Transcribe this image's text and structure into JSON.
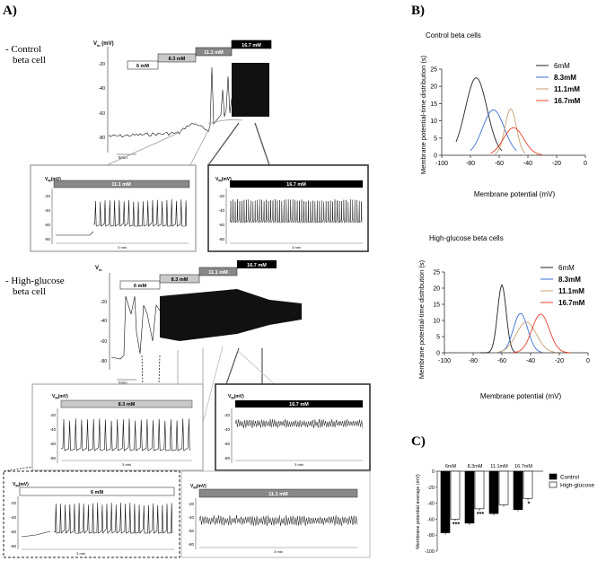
{
  "panelA": {
    "letter": "A)",
    "control": {
      "label_line1": "- Control",
      "label_line2": "beta cell",
      "vm_label": "V",
      "vm_sub": "m",
      "vm_unit": " (mV)",
      "glucose_bars": [
        "6 mM",
        "8.3 mM",
        "11.1 mM",
        "16.7 mM"
      ],
      "yticks": [
        "-20",
        "-40",
        "-60",
        "-80"
      ],
      "scale": "5min",
      "inset_left": {
        "bar": "11.1 mM",
        "vm": "V",
        "vm_sub": "M",
        "unit": "(mV)",
        "yticks": [
          "-20",
          "-40",
          "-60",
          "-80"
        ],
        "scale": "3 min"
      },
      "inset_right": {
        "bar": "16.7 mM",
        "vm": "V",
        "vm_sub": "M",
        "unit": "(mV)",
        "yticks": [
          "-20",
          "-40",
          "-60",
          "-80"
        ],
        "scale": "3 min"
      }
    },
    "highglucose": {
      "label_line1": "- High-glucose",
      "label_line2": "beta cell",
      "vm_label": "V",
      "vm_sub": "m",
      "glucose_bars": [
        "6 mM",
        "8.3 mM",
        "11.1 mM",
        "16.7 mM"
      ],
      "yticks": [
        "-20",
        "-40",
        "-60",
        "-80"
      ],
      "scale": "5min",
      "inset_83": {
        "bar": "8.3 mM",
        "vm": "V",
        "vm_sub": "M",
        "unit": "(mV)",
        "yticks": [
          "-20",
          "-40",
          "-60",
          "-80"
        ],
        "scale": "3 min"
      },
      "inset_167": {
        "bar": "16.7 mM",
        "vm": "V",
        "vm_sub": "M",
        "unit": "(mV)",
        "yticks": [
          "-20",
          "-40",
          "-60",
          "-80"
        ],
        "scale": "3 min"
      },
      "inset_6": {
        "bar": "6 mM",
        "vm": "V",
        "vm_sub": "M",
        "unit": "(mV)",
        "yticks": [
          "-20",
          "-40",
          "-60",
          "-80"
        ],
        "scale": "3 min"
      },
      "inset_111": {
        "bar": "11.1 mM",
        "vm": "V",
        "vm_sub": "M",
        "unit": "(mV)",
        "yticks": [
          "-20",
          "-40",
          "-60",
          "-80"
        ],
        "scale": "3 min"
      }
    }
  },
  "panelB": {
    "letter": "B)"
  },
  "panelC": {
    "letter": "C)"
  },
  "colors": {
    "c6": "#222222",
    "c83": "#3a6fd8",
    "c111": "#c8a070",
    "c167": "#e8402a"
  },
  "chart_data": [
    {
      "type": "line",
      "title": "Control beta cells",
      "xlabel": "Membrane potential (mV)",
      "ylabel": "Membrane potential-time distribution (s)",
      "xlim": [
        -100,
        0
      ],
      "ylim": [
        0,
        25
      ],
      "xticks": [
        "-100",
        "-80",
        "-60",
        "-40",
        "-20",
        "0"
      ],
      "yticks": [
        "0",
        "5",
        "10",
        "15",
        "20",
        "25"
      ],
      "legend": [
        "6mM",
        "8.3mM",
        "11.1mM",
        "16.7mM"
      ],
      "series": [
        {
          "name": "6mM",
          "mu": -76,
          "sigma": 7.5,
          "peak": 22.5,
          "from": -90,
          "to": -58
        },
        {
          "name": "8.3mM",
          "mu": -64,
          "sigma": 7.5,
          "peak": 13.2,
          "from": -80,
          "to": -48
        },
        {
          "name": "11.1mM",
          "mu": -52,
          "sigma": 4.0,
          "peak": 13.5,
          "from": -63,
          "to": -42
        },
        {
          "name": "16.7mM",
          "mu": -50,
          "sigma": 7.0,
          "peak": 8.0,
          "from": -66,
          "to": -30
        }
      ]
    },
    {
      "type": "line",
      "title": "High-glucose beta cells",
      "xlabel": "Membrane potential (mV)",
      "ylabel": "Membrane potential-time distribution (s)",
      "xlim": [
        -100,
        0
      ],
      "ylim": [
        0,
        25
      ],
      "xticks": [
        "-100",
        "-80",
        "-60",
        "-40",
        "-20",
        "0"
      ],
      "yticks": [
        "0",
        "5",
        "10",
        "15",
        "20",
        "25"
      ],
      "legend": [
        "6mM",
        "8.3mM",
        "11.1mM",
        "16.7mM"
      ],
      "series": [
        {
          "name": "6mM",
          "mu": -60,
          "sigma": 3.0,
          "peak": 21.0,
          "from": -75,
          "to": -50
        },
        {
          "name": "8.3mM",
          "mu": -47,
          "sigma": 5.0,
          "peak": 12.2,
          "from": -63,
          "to": -32
        },
        {
          "name": "11.1mM",
          "mu": -43,
          "sigma": 7.0,
          "peak": 9.5,
          "from": -65,
          "to": -22
        },
        {
          "name": "16.7mM",
          "mu": -33,
          "sigma": 6.0,
          "peak": 12.0,
          "from": -52,
          "to": -12
        }
      ]
    },
    {
      "type": "bar",
      "xlabel": "",
      "ylabel": "Membrane potential average (mV)",
      "ylim": [
        -100,
        0
      ],
      "yticks": [
        "0",
        "-20",
        "-40",
        "-60",
        "-80",
        "-100"
      ],
      "categories": [
        "6mM",
        "8.3mM",
        "11.1mM",
        "16.7mM"
      ],
      "series": [
        {
          "name": "Control",
          "values": [
            -77,
            -65,
            -53,
            -48
          ]
        },
        {
          "name": "High-glucose",
          "values": [
            -60,
            -47,
            -42,
            -34
          ]
        }
      ],
      "significance": [
        "***",
        "***",
        "",
        "*"
      ]
    }
  ]
}
